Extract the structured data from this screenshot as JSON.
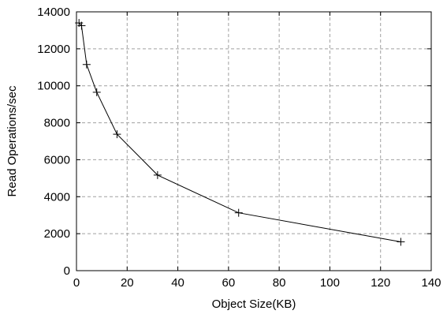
{
  "chart_data": {
    "type": "line",
    "title": "",
    "xlabel": "Object Size(KB)",
    "ylabel": "Read Operations/sec",
    "xlim": [
      0,
      140
    ],
    "ylim": [
      0,
      14000
    ],
    "xticks": [
      0,
      20,
      40,
      60,
      80,
      100,
      120,
      140
    ],
    "yticks": [
      0,
      2000,
      4000,
      6000,
      8000,
      10000,
      12000,
      14000
    ],
    "grid": true,
    "legend": "none",
    "marker": "plus",
    "line_color": "#000000",
    "grid_color": "#a0a0a0",
    "series": [
      {
        "x": [
          1,
          2,
          4,
          8,
          16,
          32,
          64,
          128
        ],
        "y": [
          13400,
          13250,
          11150,
          9650,
          7380,
          5170,
          3130,
          1560
        ]
      }
    ]
  }
}
